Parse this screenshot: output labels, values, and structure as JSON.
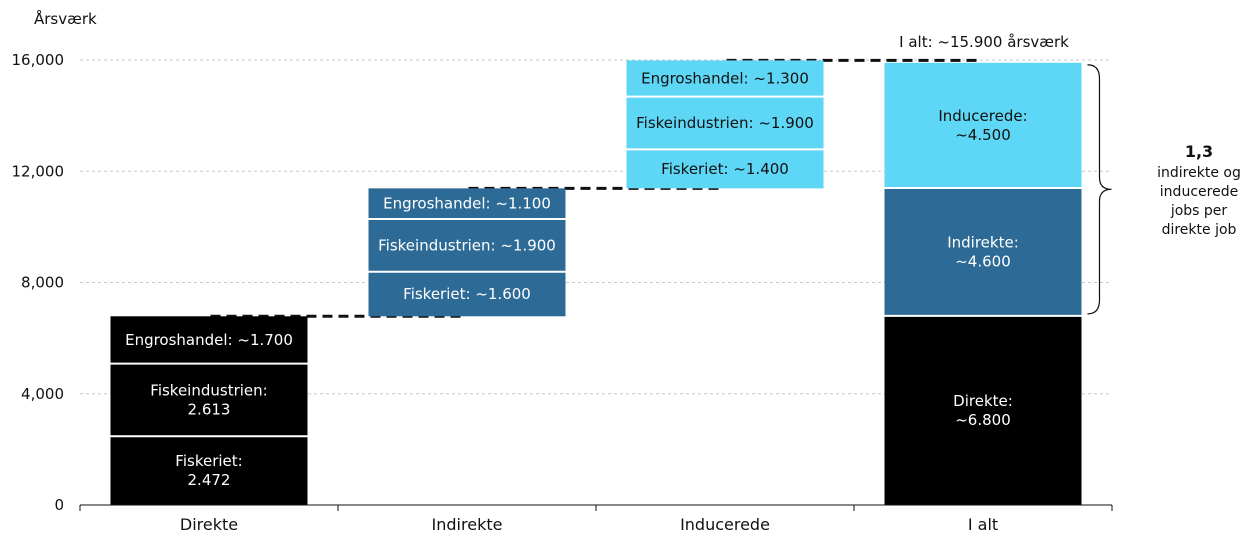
{
  "chart_data": {
    "type": "waterfall-stacked-bar",
    "ylabel": "Årsværk",
    "ylim": [
      0,
      16000
    ],
    "yticks": [
      0,
      4000,
      8000,
      12000,
      16000
    ],
    "ytick_labels": [
      "0",
      "4,000",
      "8,000",
      "12,000",
      "16,000"
    ],
    "grid": true,
    "categories": [
      "Direkte",
      "Indirekte",
      "Inducerede",
      "I alt"
    ],
    "bars": [
      {
        "category": "Direkte",
        "base": 0,
        "color": "#000000",
        "segments": [
          {
            "name": "Fiskeriet",
            "value": 2472,
            "label_lines": [
              "Fiskeriet:",
              "2.472"
            ]
          },
          {
            "name": "Fiskeindustrien",
            "value": 2613,
            "label_lines": [
              "Fiskeindustrien:",
              "2.613"
            ]
          },
          {
            "name": "Engroshandel",
            "value": 1700,
            "label_lines": [
              "Engroshandel: ~1.700"
            ]
          }
        ]
      },
      {
        "category": "Indirekte",
        "base": 6785,
        "color": "#2d6b96",
        "segments": [
          {
            "name": "Fiskeriet",
            "value": 1600,
            "label_lines": [
              "Fiskeriet: ~1.600"
            ]
          },
          {
            "name": "Fiskeindustrien",
            "value": 1900,
            "label_lines": [
              "Fiskeindustrien: ~1.900"
            ]
          },
          {
            "name": "Engroshandel",
            "value": 1100,
            "label_lines": [
              "Engroshandel: ~1.100"
            ]
          }
        ]
      },
      {
        "category": "Inducerede",
        "base": 11385,
        "color": "#5ed6f5",
        "segments": [
          {
            "name": "Fiskeriet",
            "value": 1400,
            "label_lines": [
              "Fiskeriet: ~1.400"
            ]
          },
          {
            "name": "Fiskeindustrien",
            "value": 1900,
            "label_lines": [
              "Fiskeindustrien: ~1.900"
            ]
          },
          {
            "name": "Engroshandel",
            "value": 1300,
            "label_lines": [
              "Engroshandel: ~1.300"
            ]
          }
        ]
      },
      {
        "category": "I alt",
        "base": 0,
        "segments": [
          {
            "name": "Direkte",
            "value": 6800,
            "color": "#000000",
            "label_lines": [
              "Direkte:",
              "~6.800"
            ]
          },
          {
            "name": "Indirekte",
            "value": 4600,
            "color": "#2d6b96",
            "label_lines": [
              "Indirekte:",
              "~4.600"
            ]
          },
          {
            "name": "Inducerede",
            "value": 4500,
            "color": "#5ed6f5",
            "label_lines": [
              "Inducerede:",
              "~4.500"
            ]
          }
        ]
      }
    ],
    "total_annotation": "I alt: ~15.900 årsværk",
    "ratio_annotation": {
      "value": "1,3",
      "lines": [
        "indirekte og",
        "inducerede",
        "jobs per",
        "direkte job"
      ]
    }
  }
}
